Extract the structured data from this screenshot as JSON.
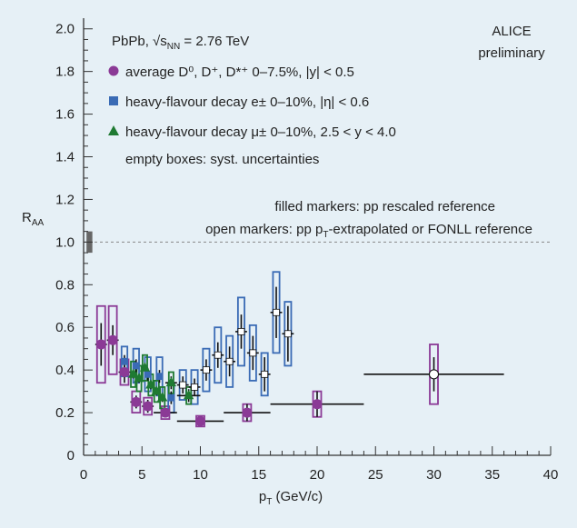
{
  "chart_data": {
    "type": "scatter",
    "title": "",
    "xlabel": "p",
    "xlabel_sub": "T",
    "xlabel_unit": " (GeV/c)",
    "ylabel": "R",
    "ylabel_sub": "AA",
    "xlim": [
      0,
      40
    ],
    "ylim": [
      0,
      2.05
    ],
    "xticks": [
      0,
      5,
      10,
      15,
      20,
      25,
      30,
      35,
      40
    ],
    "yticks": [
      0,
      0.2,
      0.4,
      0.6,
      0.8,
      1.0,
      1.2,
      1.4,
      1.6,
      1.8,
      2.0
    ],
    "xtick_labels": [
      "0",
      "5",
      "10",
      "15",
      "20",
      "25",
      "30",
      "35",
      "40"
    ],
    "ytick_labels": [
      "0",
      "0.2",
      "0.4",
      "0.6",
      "0.8",
      "1.0",
      "1.2",
      "1.4",
      "1.6",
      "1.8",
      "2.0"
    ],
    "reference_line": 1.0,
    "ref_syst_box": [
      0.95,
      1.05
    ],
    "colors": {
      "D": "#8b3a96",
      "e": "#3a6bb5",
      "mu": "#1f7a32",
      "open": "#ffffff",
      "axis": "#333333",
      "ref_box": "#666666"
    },
    "annotations": {
      "experiment": "ALICE",
      "status": "preliminary",
      "system": "PbPb, √s",
      "system_sub": "NN",
      "system_energy": " = 2.76 TeV",
      "syst_note": "empty boxes: syst. uncertainties",
      "filled_note": "filled markers: pp rescaled reference",
      "open_note_pre": "open markers: pp p",
      "open_note_sub": "T",
      "open_note_post": "-extrapolated or FONLL reference"
    },
    "legend": [
      {
        "series": "D",
        "text": "average D⁰, D⁺, D*⁺ 0–7.5%, |y| < 0.5",
        "marker": "circle"
      },
      {
        "series": "e",
        "text": "heavy-flavour decay e± 0–10%, |η| < 0.6",
        "marker": "square"
      },
      {
        "series": "mu",
        "text": "heavy-flavour decay μ± 0–10%, 2.5 < y < 4.0",
        "marker": "triangle"
      }
    ],
    "series": [
      {
        "name": "D",
        "points": [
          {
            "x": 1.5,
            "y": 0.52,
            "xerr": 0.5,
            "stat": 0.1,
            "syst": 0.18,
            "open": false
          },
          {
            "x": 2.5,
            "y": 0.54,
            "xerr": 0.5,
            "stat": 0.07,
            "syst": 0.16,
            "open": false
          },
          {
            "x": 3.5,
            "y": 0.39,
            "xerr": 0.5,
            "stat": 0.05,
            "syst": 0.06,
            "open": false
          },
          {
            "x": 4.5,
            "y": 0.25,
            "xerr": 0.5,
            "stat": 0.03,
            "syst": 0.05,
            "open": false
          },
          {
            "x": 5.5,
            "y": 0.23,
            "xerr": 0.5,
            "stat": 0.03,
            "syst": 0.04,
            "open": false
          },
          {
            "x": 7.0,
            "y": 0.2,
            "xerr": 1.0,
            "stat": 0.02,
            "syst": 0.03,
            "open": false
          },
          {
            "x": 10.0,
            "y": 0.16,
            "xerr": 2.0,
            "stat": 0.02,
            "syst": 0.025,
            "open": false
          },
          {
            "x": 14.0,
            "y": 0.2,
            "xerr": 2.0,
            "stat": 0.04,
            "syst": 0.04,
            "open": false
          },
          {
            "x": 20.0,
            "y": 0.24,
            "xerr": 4.0,
            "stat": 0.06,
            "syst": 0.06,
            "open": false
          },
          {
            "x": 30.0,
            "y": 0.38,
            "xerr": 6.0,
            "stat": 0.08,
            "syst": 0.14,
            "open": true
          }
        ]
      },
      {
        "name": "e",
        "points": [
          {
            "x": 3.5,
            "y": 0.44,
            "xerr": 0.25,
            "stat": 0.03,
            "syst": 0.07,
            "open": false
          },
          {
            "x": 4.5,
            "y": 0.42,
            "xerr": 0.25,
            "stat": 0.03,
            "syst": 0.08,
            "open": false
          },
          {
            "x": 5.5,
            "y": 0.38,
            "xerr": 0.25,
            "stat": 0.03,
            "syst": 0.08,
            "open": false
          },
          {
            "x": 6.5,
            "y": 0.37,
            "xerr": 0.25,
            "stat": 0.03,
            "syst": 0.09,
            "open": false
          },
          {
            "x": 7.5,
            "y": 0.27,
            "xerr": 0.25,
            "stat": 0.03,
            "syst": 0.07,
            "open": false
          },
          {
            "x": 8.5,
            "y": 0.33,
            "xerr": 0.5,
            "stat": 0.04,
            "syst": 0.07,
            "open": true
          },
          {
            "x": 9.5,
            "y": 0.32,
            "xerr": 0.5,
            "stat": 0.04,
            "syst": 0.08,
            "open": true
          },
          {
            "x": 10.5,
            "y": 0.4,
            "xerr": 0.5,
            "stat": 0.05,
            "syst": 0.1,
            "open": true
          },
          {
            "x": 11.5,
            "y": 0.47,
            "xerr": 0.5,
            "stat": 0.06,
            "syst": 0.13,
            "open": true
          },
          {
            "x": 12.5,
            "y": 0.44,
            "xerr": 0.5,
            "stat": 0.07,
            "syst": 0.12,
            "open": true
          },
          {
            "x": 13.5,
            "y": 0.58,
            "xerr": 0.5,
            "stat": 0.08,
            "syst": 0.16,
            "open": true
          },
          {
            "x": 14.5,
            "y": 0.48,
            "xerr": 0.5,
            "stat": 0.08,
            "syst": 0.13,
            "open": true
          },
          {
            "x": 15.5,
            "y": 0.38,
            "xerr": 0.5,
            "stat": 0.08,
            "syst": 0.1,
            "open": true
          },
          {
            "x": 16.5,
            "y": 0.67,
            "xerr": 0.5,
            "stat": 0.12,
            "syst": 0.19,
            "open": true
          },
          {
            "x": 17.5,
            "y": 0.57,
            "xerr": 0.5,
            "stat": 0.13,
            "syst": 0.15,
            "open": true
          }
        ]
      },
      {
        "name": "mu",
        "points": [
          {
            "x": 4.25,
            "y": 0.38,
            "xerr": 0.25,
            "stat": 0.02,
            "syst": 0.06,
            "open": false
          },
          {
            "x": 4.75,
            "y": 0.36,
            "xerr": 0.25,
            "stat": 0.02,
            "syst": 0.06,
            "open": false
          },
          {
            "x": 5.25,
            "y": 0.41,
            "xerr": 0.25,
            "stat": 0.02,
            "syst": 0.06,
            "open": false
          },
          {
            "x": 5.75,
            "y": 0.33,
            "xerr": 0.25,
            "stat": 0.02,
            "syst": 0.05,
            "open": false
          },
          {
            "x": 6.25,
            "y": 0.3,
            "xerr": 0.25,
            "stat": 0.02,
            "syst": 0.05,
            "open": false
          },
          {
            "x": 6.75,
            "y": 0.27,
            "xerr": 0.25,
            "stat": 0.02,
            "syst": 0.05,
            "open": false
          },
          {
            "x": 7.5,
            "y": 0.34,
            "xerr": 0.5,
            "stat": 0.03,
            "syst": 0.05,
            "open": false
          },
          {
            "x": 9.0,
            "y": 0.28,
            "xerr": 1.0,
            "stat": 0.03,
            "syst": 0.04,
            "open": false
          }
        ]
      }
    ]
  }
}
